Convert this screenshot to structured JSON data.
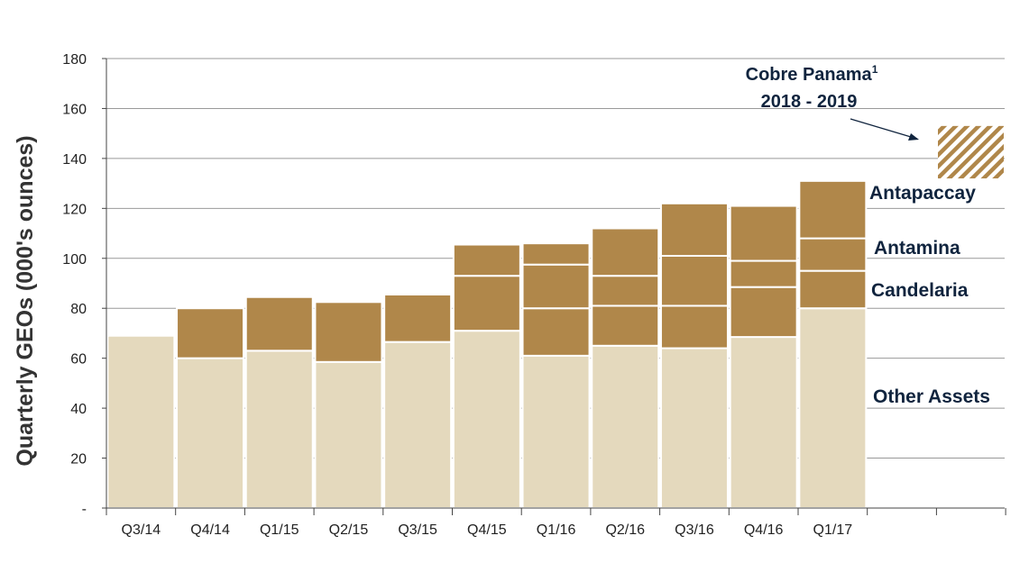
{
  "chart_data": {
    "type": "bar",
    "stacked": true,
    "categories": [
      "Q3/14",
      "Q4/14",
      "Q1/15",
      "Q2/15",
      "Q3/15",
      "Q4/15",
      "Q1/16",
      "Q2/16",
      "Q3/16",
      "Q4/16",
      "Q1/17"
    ],
    "series": [
      {
        "name": "Other Assets",
        "values": [
          69,
          60,
          63,
          58.5,
          66.5,
          71,
          61,
          65,
          64,
          68.5,
          80
        ]
      },
      {
        "name": "Candelaria",
        "values": [
          0,
          20,
          21.5,
          24,
          19,
          22,
          19,
          16,
          17,
          20,
          15
        ]
      },
      {
        "name": "Antamina",
        "values": [
          0,
          0,
          0,
          0,
          0,
          0,
          17.5,
          12,
          20,
          10.5,
          13
        ]
      },
      {
        "name": "Antapaccay",
        "values": [
          0,
          0,
          0,
          0,
          0,
          12.5,
          8.5,
          19,
          21,
          22,
          23
        ]
      }
    ],
    "ylabel": "Quarterly GEOs (000's ounces)",
    "ylim": [
      0,
      180
    ],
    "yticks": [
      "-",
      "20",
      "40",
      "60",
      "80",
      "100",
      "120",
      "140",
      "160",
      "180"
    ],
    "grid": true,
    "colors": {
      "base": "#e4d9bd",
      "stack": "#b0874a",
      "grid": "#999999",
      "annotation": "#10243e"
    },
    "annotation": {
      "title": "Cobre Panama",
      "superscript": "1",
      "period": "2018 - 2019",
      "range": [
        132,
        153
      ],
      "pattern": "diagonal-hatch"
    }
  }
}
